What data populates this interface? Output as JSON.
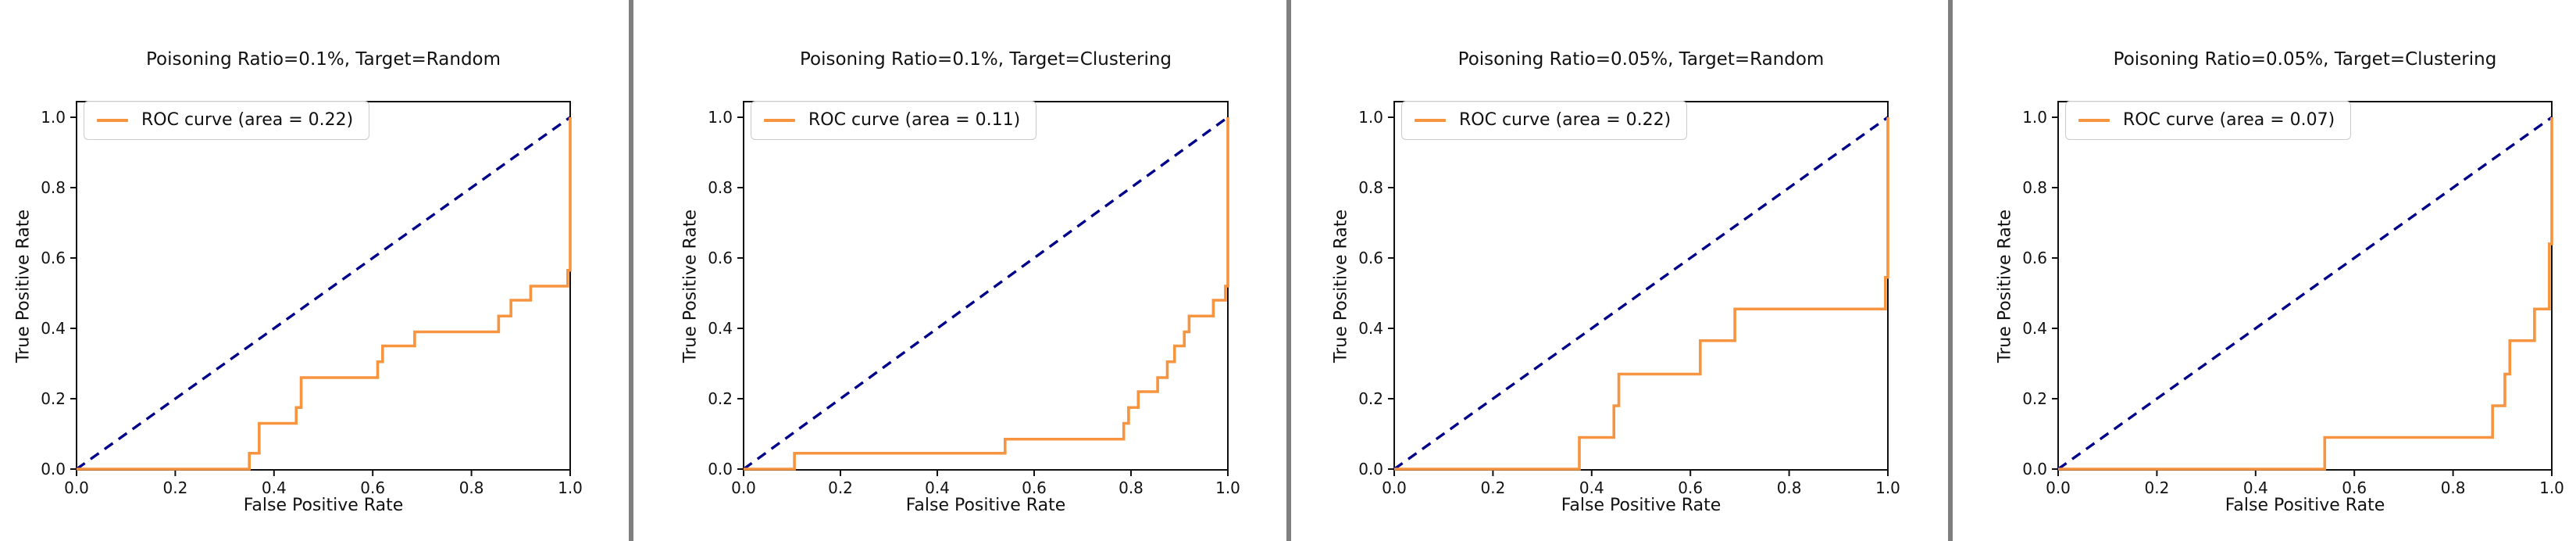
{
  "page": {
    "background": "#ffffff",
    "divider_color": "#7f7f7f",
    "axis_color": "#111111"
  },
  "chart_data": [
    {
      "type": "line",
      "title": "Poisoning Ratio=0.1%, Target=Random",
      "xlabel": "False Positive Rate",
      "ylabel": "True Positive Rate",
      "xlim": [
        0.0,
        1.0
      ],
      "ylim": [
        0.0,
        1.045
      ],
      "xtick_labels": [
        "0.0",
        "0.2",
        "0.4",
        "0.6",
        "0.8",
        "1.0"
      ],
      "ytick_labels": [
        "0.0",
        "0.2",
        "0.4",
        "0.6",
        "0.8",
        "1.0"
      ],
      "grid": false,
      "legend": {
        "position": "upper left",
        "label": "ROC curve (area = 0.22)"
      },
      "auc": 0.22,
      "series": [
        {
          "name": "ROC curve",
          "color": "#f79440",
          "style": "solid",
          "points": [
            [
              0,
              0
            ],
            [
              0.35,
              0
            ],
            [
              0.35,
              0.045
            ],
            [
              0.37,
              0.045
            ],
            [
              0.37,
              0.13
            ],
            [
              0.445,
              0.13
            ],
            [
              0.445,
              0.175
            ],
            [
              0.455,
              0.175
            ],
            [
              0.455,
              0.26
            ],
            [
              0.61,
              0.26
            ],
            [
              0.61,
              0.305
            ],
            [
              0.62,
              0.305
            ],
            [
              0.62,
              0.35
            ],
            [
              0.685,
              0.35
            ],
            [
              0.685,
              0.39
            ],
            [
              0.855,
              0.39
            ],
            [
              0.855,
              0.435
            ],
            [
              0.88,
              0.435
            ],
            [
              0.88,
              0.48
            ],
            [
              0.92,
              0.48
            ],
            [
              0.92,
              0.52
            ],
            [
              0.995,
              0.52
            ],
            [
              0.995,
              0.565
            ],
            [
              1.0,
              0.565
            ],
            [
              1.0,
              1.0
            ]
          ]
        },
        {
          "name": "chance diagonal",
          "color": "#00008b",
          "style": "dashed",
          "points": [
            [
              0,
              0
            ],
            [
              1,
              1
            ]
          ]
        }
      ]
    },
    {
      "type": "line",
      "title": "Poisoning Ratio=0.1%, Target=Clustering",
      "xlabel": "False Positive Rate",
      "ylabel": "True Positive Rate",
      "xlim": [
        0.0,
        1.0
      ],
      "ylim": [
        0.0,
        1.045
      ],
      "xtick_labels": [
        "0.0",
        "0.2",
        "0.4",
        "0.6",
        "0.8",
        "1.0"
      ],
      "ytick_labels": [
        "0.0",
        "0.2",
        "0.4",
        "0.6",
        "0.8",
        "1.0"
      ],
      "grid": false,
      "legend": {
        "position": "upper left",
        "label": "ROC curve (area = 0.11)"
      },
      "auc": 0.11,
      "series": [
        {
          "name": "ROC curve",
          "color": "#f79440",
          "style": "solid",
          "points": [
            [
              0,
              0
            ],
            [
              0.105,
              0
            ],
            [
              0.105,
              0.045
            ],
            [
              0.54,
              0.045
            ],
            [
              0.54,
              0.085
            ],
            [
              0.785,
              0.085
            ],
            [
              0.785,
              0.13
            ],
            [
              0.795,
              0.13
            ],
            [
              0.795,
              0.175
            ],
            [
              0.815,
              0.175
            ],
            [
              0.815,
              0.22
            ],
            [
              0.855,
              0.22
            ],
            [
              0.855,
              0.26
            ],
            [
              0.875,
              0.26
            ],
            [
              0.875,
              0.305
            ],
            [
              0.89,
              0.305
            ],
            [
              0.89,
              0.35
            ],
            [
              0.91,
              0.35
            ],
            [
              0.91,
              0.39
            ],
            [
              0.92,
              0.39
            ],
            [
              0.92,
              0.435
            ],
            [
              0.97,
              0.435
            ],
            [
              0.97,
              0.48
            ],
            [
              0.995,
              0.48
            ],
            [
              0.995,
              0.52
            ],
            [
              1.0,
              0.52
            ],
            [
              1.0,
              1.0
            ]
          ]
        },
        {
          "name": "chance diagonal",
          "color": "#00008b",
          "style": "dashed",
          "points": [
            [
              0,
              0
            ],
            [
              1,
              1
            ]
          ]
        }
      ]
    },
    {
      "type": "line",
      "title": "Poisoning Ratio=0.05%, Target=Random",
      "xlabel": "False Positive Rate",
      "ylabel": "True Positive Rate",
      "xlim": [
        0.0,
        1.0
      ],
      "ylim": [
        0.0,
        1.045
      ],
      "xtick_labels": [
        "0.0",
        "0.2",
        "0.4",
        "0.6",
        "0.8",
        "1.0"
      ],
      "ytick_labels": [
        "0.0",
        "0.2",
        "0.4",
        "0.6",
        "0.8",
        "1.0"
      ],
      "grid": false,
      "legend": {
        "position": "upper left",
        "label": "ROC curve (area = 0.22)"
      },
      "auc": 0.22,
      "series": [
        {
          "name": "ROC curve",
          "color": "#f79440",
          "style": "solid",
          "points": [
            [
              0,
              0
            ],
            [
              0.375,
              0
            ],
            [
              0.375,
              0.09
            ],
            [
              0.445,
              0.09
            ],
            [
              0.445,
              0.18
            ],
            [
              0.455,
              0.18
            ],
            [
              0.455,
              0.27
            ],
            [
              0.62,
              0.27
            ],
            [
              0.62,
              0.365
            ],
            [
              0.69,
              0.365
            ],
            [
              0.69,
              0.455
            ],
            [
              0.995,
              0.455
            ],
            [
              0.995,
              0.545
            ],
            [
              1.0,
              0.545
            ],
            [
              1.0,
              1.0
            ]
          ]
        },
        {
          "name": "chance diagonal",
          "color": "#00008b",
          "style": "dashed",
          "points": [
            [
              0,
              0
            ],
            [
              1,
              1
            ]
          ]
        }
      ]
    },
    {
      "type": "line",
      "title": "Poisoning Ratio=0.05%, Target=Clustering",
      "xlabel": "False Positive Rate",
      "ylabel": "True Positive Rate",
      "xlim": [
        0.0,
        1.0
      ],
      "ylim": [
        0.0,
        1.045
      ],
      "xtick_labels": [
        "0.0",
        "0.2",
        "0.4",
        "0.6",
        "0.8",
        "1.0"
      ],
      "ytick_labels": [
        "0.0",
        "0.2",
        "0.4",
        "0.6",
        "0.8",
        "1.0"
      ],
      "grid": false,
      "legend": {
        "position": "upper left",
        "label": "ROC curve (area = 0.07)"
      },
      "auc": 0.07,
      "series": [
        {
          "name": "ROC curve",
          "color": "#f79440",
          "style": "solid",
          "points": [
            [
              0,
              0
            ],
            [
              0.54,
              0
            ],
            [
              0.54,
              0.09
            ],
            [
              0.88,
              0.09
            ],
            [
              0.88,
              0.18
            ],
            [
              0.905,
              0.18
            ],
            [
              0.905,
              0.27
            ],
            [
              0.915,
              0.27
            ],
            [
              0.915,
              0.365
            ],
            [
              0.965,
              0.365
            ],
            [
              0.965,
              0.455
            ],
            [
              0.995,
              0.455
            ],
            [
              0.995,
              0.64
            ],
            [
              1.0,
              0.64
            ],
            [
              1.0,
              1.0
            ]
          ]
        },
        {
          "name": "chance diagonal",
          "color": "#00008b",
          "style": "dashed",
          "points": [
            [
              0,
              0
            ],
            [
              1,
              1
            ]
          ]
        }
      ]
    }
  ]
}
